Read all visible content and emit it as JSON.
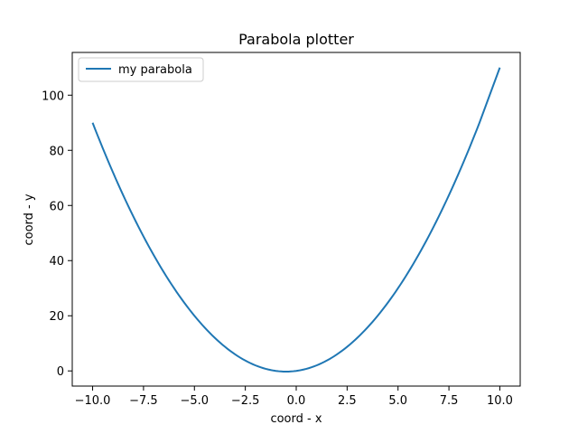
{
  "chart_data": {
    "type": "line",
    "title": "Parabola plotter",
    "xlabel": "coord - x",
    "ylabel": "coord - y",
    "xlim": [
      -11,
      11
    ],
    "ylim": [
      -5.5,
      115.5
    ],
    "x_ticks": [
      -10.0,
      -7.5,
      -5.0,
      -2.5,
      0.0,
      2.5,
      5.0,
      7.5,
      10.0
    ],
    "x_tick_labels": [
      "−10.0",
      "−7.5",
      "−5.0",
      "−2.5",
      "0.0",
      "2.5",
      "5.0",
      "7.5",
      "10.0"
    ],
    "y_ticks": [
      0,
      20,
      40,
      60,
      80,
      100
    ],
    "y_tick_labels": [
      "0",
      "20",
      "40",
      "60",
      "80",
      "100"
    ],
    "grid": false,
    "legend_position": "top-left",
    "series": [
      {
        "name": "my parabola",
        "color": "#1f77b4",
        "x": [
          -10,
          -9,
          -8,
          -7,
          -6,
          -5,
          -4,
          -3,
          -2,
          -1,
          -0.5,
          0,
          1,
          2,
          3,
          4,
          5,
          6,
          7,
          8,
          9,
          10
        ],
        "y": [
          90,
          72,
          56,
          42,
          30,
          20,
          12,
          6,
          2,
          0,
          -0.25,
          0,
          2,
          6,
          12,
          20,
          30,
          42,
          56,
          72,
          90,
          110
        ]
      }
    ]
  }
}
